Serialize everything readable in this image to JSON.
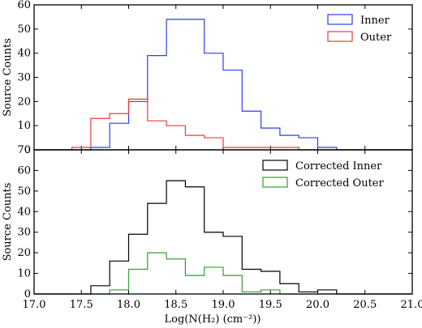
{
  "chart_data": [
    {
      "type": "histogram",
      "panel": "top",
      "ylabel": "Source Counts",
      "ylim": [
        0,
        60
      ],
      "yticks": [
        "0",
        "10",
        "20",
        "30",
        "40",
        "50",
        "60"
      ],
      "xlim": [
        17.0,
        21.0
      ],
      "bin_edges": [
        17.0,
        17.2,
        17.4,
        17.6,
        17.8,
        18.0,
        18.2,
        18.4,
        18.6,
        18.8,
        19.0,
        19.2,
        19.4,
        19.6,
        19.8,
        20.0,
        20.2,
        20.4,
        20.6,
        20.8,
        21.0
      ],
      "legend_position": "top-right",
      "series": [
        {
          "name": "Inner",
          "color": "#2b3ff0",
          "values": [
            0,
            0,
            0,
            1,
            11,
            20,
            39,
            54,
            54,
            40,
            33,
            16,
            9,
            6,
            5,
            1,
            0,
            0,
            0,
            0
          ]
        },
        {
          "name": "Outer",
          "color": "#f03a3a",
          "values": [
            0,
            0,
            1,
            13,
            15,
            21,
            12,
            10,
            6,
            5,
            1,
            1,
            1,
            1,
            0,
            0,
            0,
            0,
            0,
            0
          ]
        }
      ]
    },
    {
      "type": "histogram",
      "panel": "bottom",
      "ylabel": "Source Counts",
      "xlabel": "Log(N(H₂) (cm⁻²))",
      "ylim": [
        0,
        70
      ],
      "yticks": [
        "0",
        "10",
        "20",
        "30",
        "40",
        "50",
        "60"
      ],
      "top_tick_label": "70",
      "xlim": [
        17.0,
        21.0
      ],
      "xticks": [
        "17.0",
        "17.5",
        "18.0",
        "18.5",
        "19.0",
        "19.5",
        "20.0",
        "20.5",
        "21.0"
      ],
      "bin_edges": [
        17.0,
        17.2,
        17.4,
        17.6,
        17.8,
        18.0,
        18.2,
        18.4,
        18.6,
        18.8,
        19.0,
        19.2,
        19.4,
        19.6,
        19.8,
        20.0,
        20.2,
        20.4,
        20.6,
        20.8,
        21.0
      ],
      "legend_position": "top-right",
      "series": [
        {
          "name": "Corrected Inner",
          "color": "#000000",
          "values": [
            0,
            0,
            0,
            4,
            16,
            29,
            44,
            55,
            52,
            30,
            28,
            12,
            11,
            5,
            1,
            2,
            0,
            0,
            0,
            0
          ]
        },
        {
          "name": "Corrected Outer",
          "color": "#2ea02e",
          "values": [
            0,
            0,
            0,
            0,
            2,
            12,
            20,
            17,
            9,
            13,
            9,
            1,
            2,
            0,
            0,
            0,
            0,
            0,
            0,
            0
          ]
        }
      ]
    }
  ]
}
